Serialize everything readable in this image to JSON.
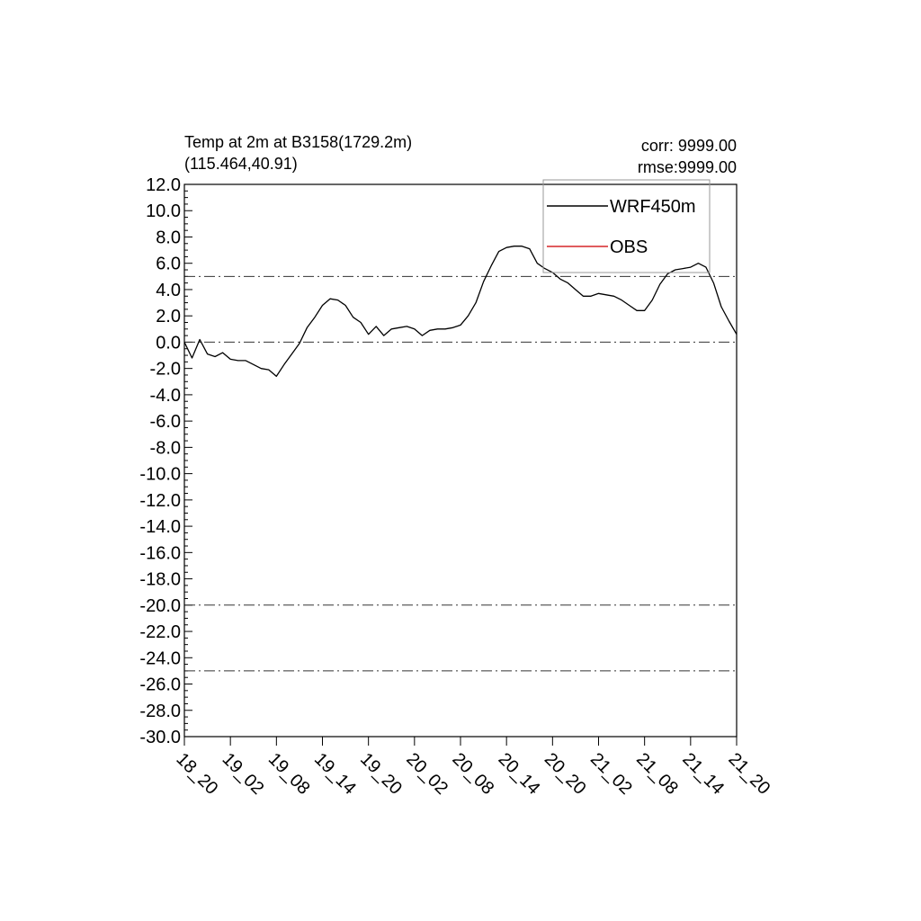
{
  "title": {
    "line1": "Temp at 2m at B3158(1729.2m)",
    "line2": "(115.464,40.91)"
  },
  "stats": {
    "corr": "corr: 9999.00",
    "rmse": "rmse:9999.00"
  },
  "chart_data": {
    "type": "line",
    "title": "Temp at 2m at B3158(1729.2m) (115.464,40.91)",
    "xlabel": "",
    "ylabel": "",
    "ylim": [
      -30,
      12
    ],
    "y_ticks": [
      12,
      10,
      8,
      6,
      4,
      2,
      0,
      -2,
      -4,
      -6,
      -8,
      -10,
      -12,
      -14,
      -16,
      -18,
      -20,
      -22,
      -24,
      -26,
      -28,
      -30
    ],
    "y_tick_labels": [
      "12.0",
      "10.0",
      "8.0",
      "6.0",
      "4.0",
      "2.0",
      "0.0",
      "-2.0",
      "-4.0",
      "-6.0",
      "-8.0",
      "-10.0",
      "-12.0",
      "-14.0",
      "-16.0",
      "-18.0",
      "-20.0",
      "-22.0",
      "-24.0",
      "-26.0",
      "-28.0",
      "-30.0"
    ],
    "xlim": [
      0,
      72
    ],
    "x_ticks": [
      0,
      6,
      12,
      18,
      24,
      30,
      36,
      42,
      48,
      54,
      60,
      66,
      72
    ],
    "x_tick_labels": [
      "18_20",
      "19_02",
      "19_08",
      "19_14",
      "19_20",
      "20_02",
      "20_08",
      "20_14",
      "20_20",
      "21_02",
      "21_08",
      "21_14",
      "21_20"
    ],
    "reference_lines": [
      5,
      0,
      -20,
      -25
    ],
    "legend": {
      "placement": "top-right",
      "entries": [
        {
          "label": "WRF450m",
          "color": "#000000"
        },
        {
          "label": "OBS",
          "color": "#d62728"
        }
      ]
    },
    "series": [
      {
        "name": "WRF450m",
        "color": "#000000",
        "x": [
          0,
          1,
          2,
          3,
          4,
          5,
          6,
          7,
          8,
          9,
          10,
          11,
          12,
          13,
          14,
          15,
          16,
          17,
          18,
          19,
          20,
          21,
          22,
          23,
          24,
          25,
          26,
          27,
          28,
          29,
          30,
          31,
          32,
          33,
          34,
          35,
          36,
          37,
          38,
          39,
          40,
          41,
          42,
          43,
          44,
          45,
          46,
          47,
          48,
          49,
          50,
          51,
          52,
          53,
          54,
          55,
          56,
          57,
          58,
          59,
          60,
          61,
          62,
          63,
          64,
          65,
          66,
          67,
          68,
          69,
          70,
          71,
          72
        ],
        "y": [
          0.0,
          -1.2,
          0.2,
          -0.9,
          -1.1,
          -0.8,
          -1.3,
          -1.4,
          -1.4,
          -1.7,
          -2.0,
          -2.1,
          -2.6,
          -1.7,
          -0.9,
          -0.1,
          1.1,
          1.9,
          2.8,
          3.3,
          3.2,
          2.8,
          1.9,
          1.5,
          0.6,
          1.2,
          0.5,
          1.0,
          1.1,
          1.2,
          1.0,
          0.5,
          0.9,
          1.0,
          1.0,
          1.1,
          1.3,
          2.0,
          3.0,
          4.6,
          5.8,
          6.9,
          7.2,
          7.3,
          7.3,
          7.1,
          6.0,
          5.6,
          5.3,
          4.8,
          4.5,
          4.0,
          3.5,
          3.5,
          3.7,
          3.6,
          3.5,
          3.2,
          2.8,
          2.4,
          2.4,
          3.2,
          4.4,
          5.2,
          5.5,
          5.6,
          5.7,
          6.0,
          5.7,
          4.5,
          2.7,
          1.6,
          0.6
        ]
      },
      {
        "name": "OBS",
        "color": "#d62728",
        "x": [],
        "y": []
      }
    ]
  }
}
